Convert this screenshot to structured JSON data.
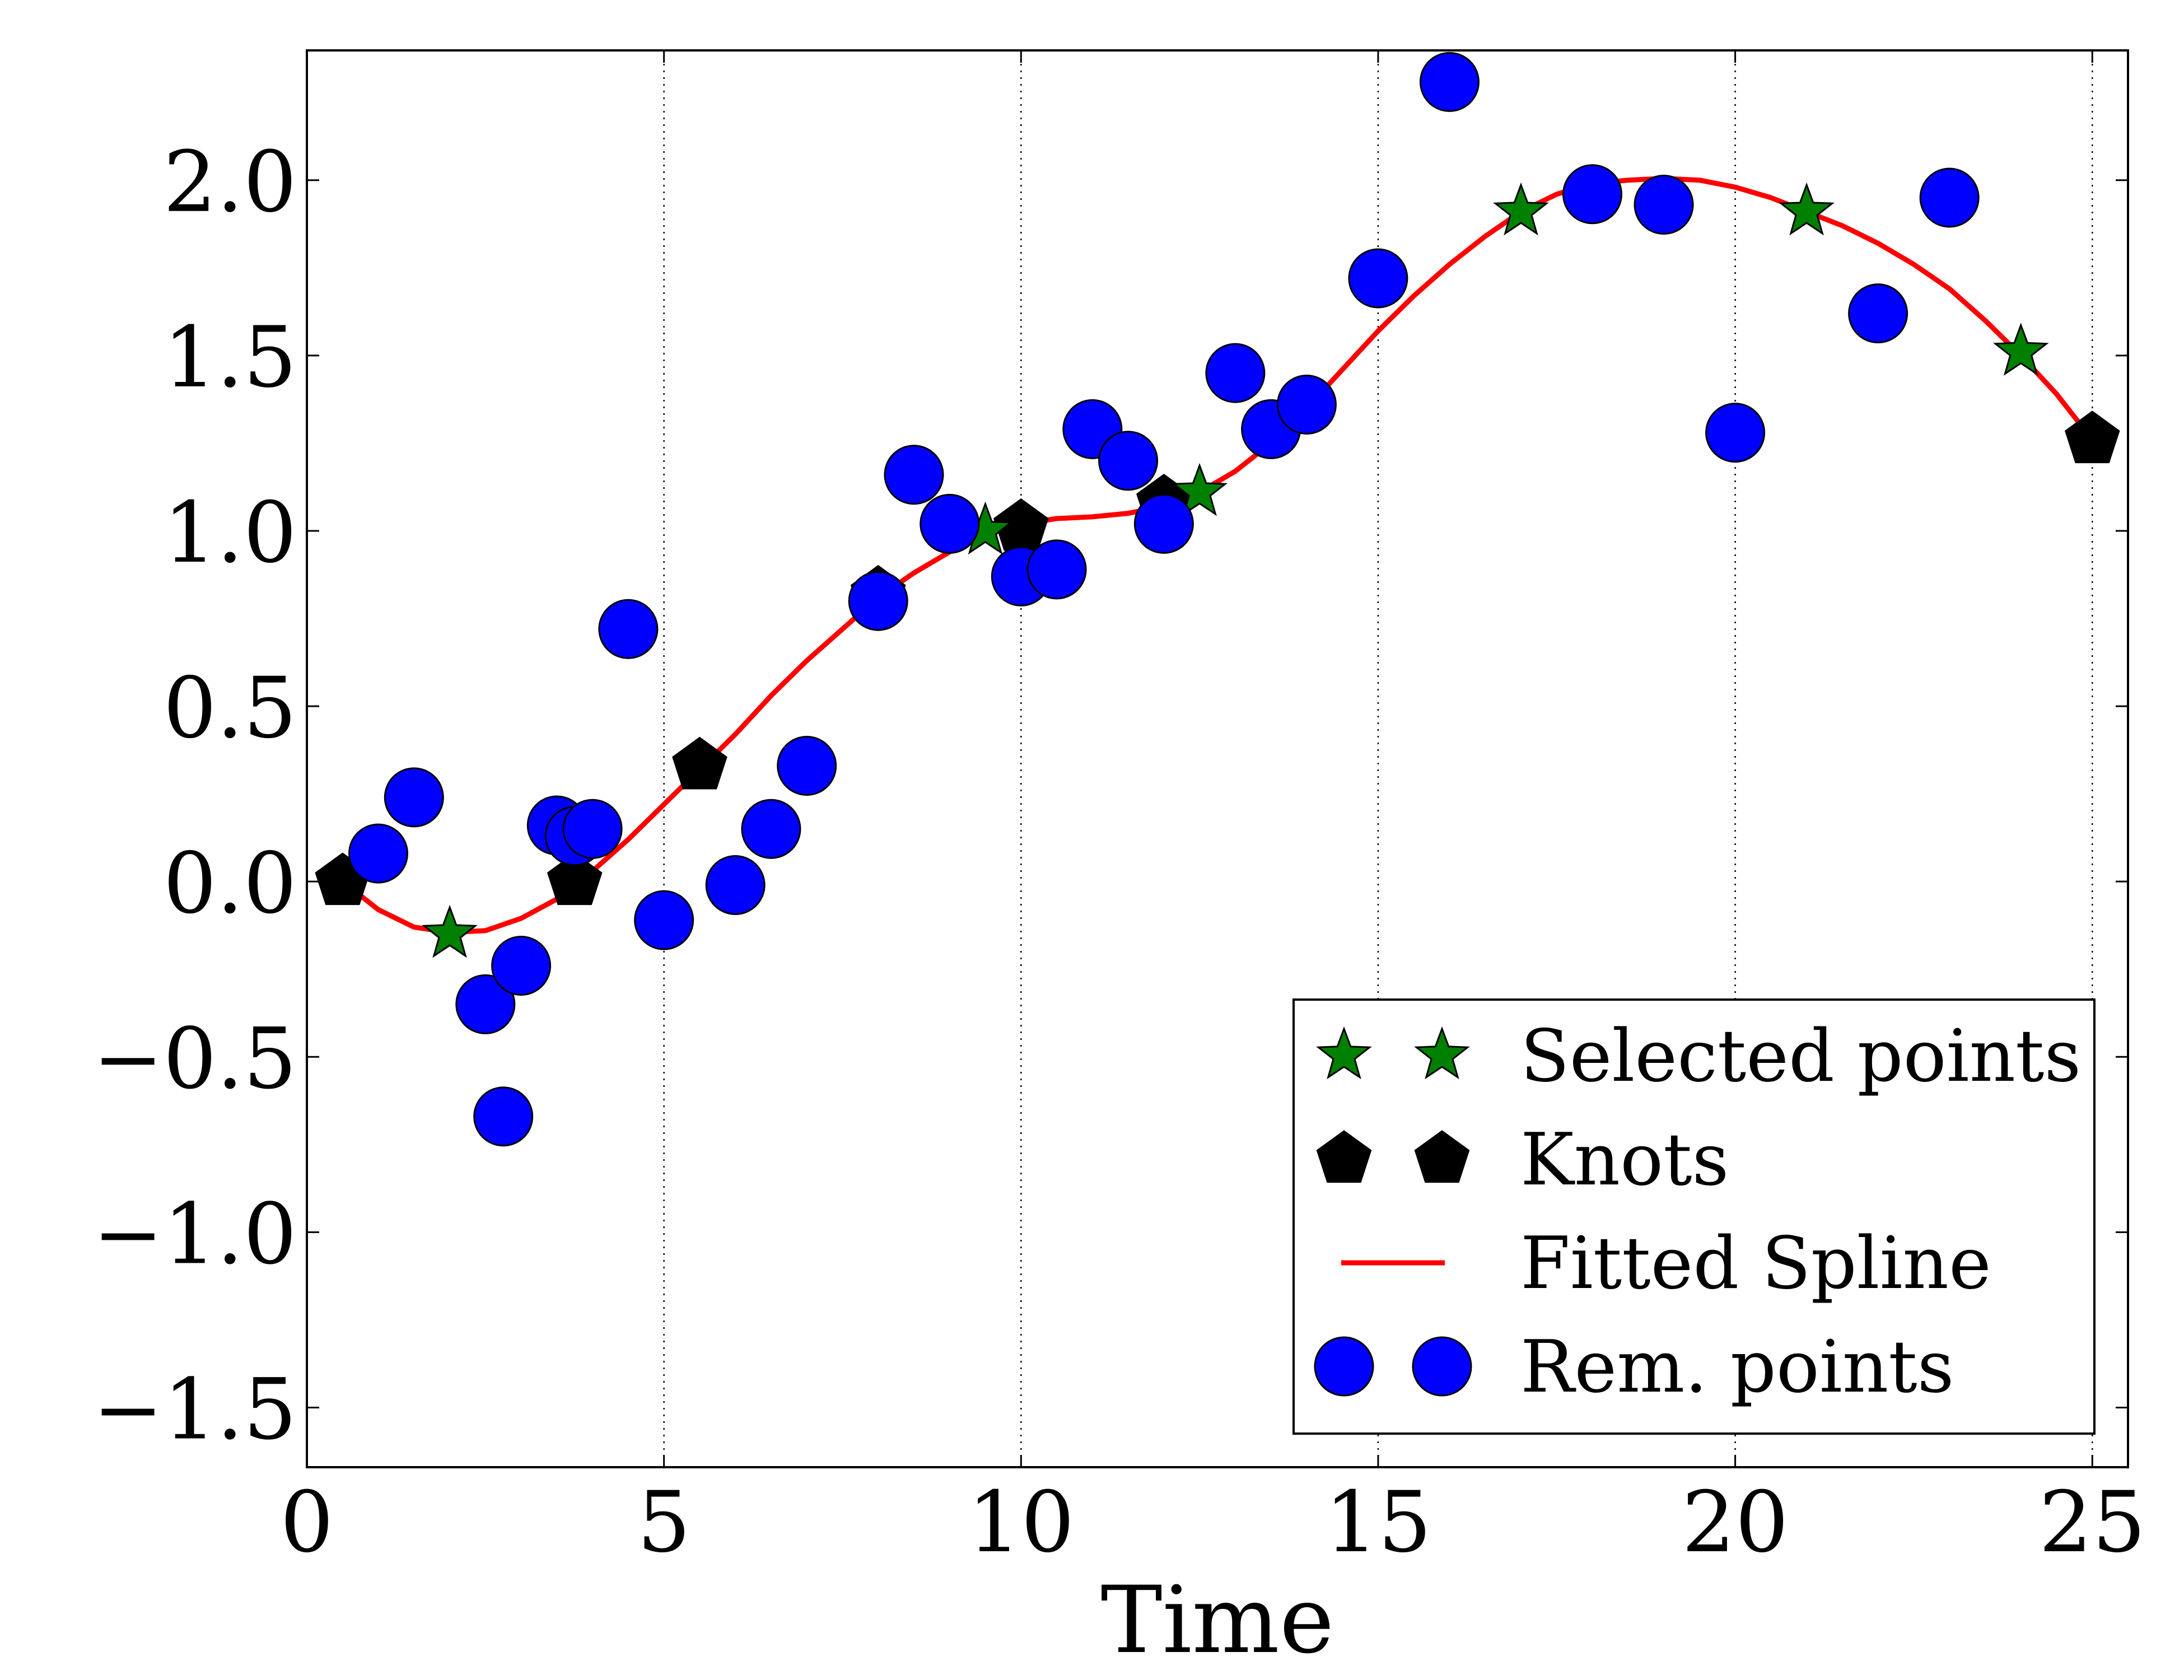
{
  "chart_data": {
    "type": "scatter",
    "title": "",
    "xlabel": "Time",
    "ylabel": "",
    "xlim": [
      0,
      25.5
    ],
    "ylim": [
      -1.67,
      2.37
    ],
    "x_ticks": [
      0,
      5,
      10,
      15,
      20,
      25
    ],
    "y_ticks": [
      -1.5,
      -1.0,
      -0.5,
      0.0,
      0.5,
      1.0,
      1.5,
      2.0
    ],
    "x_tick_labels": [
      "0",
      "5",
      "10",
      "15",
      "20",
      "25"
    ],
    "y_tick_labels": [
      "−1.5",
      "−1.0",
      "−0.5",
      "0.0",
      "0.5",
      "1.0",
      "1.5",
      "2.0"
    ],
    "grid": {
      "x": true,
      "y": false,
      "style": "dotted"
    },
    "legend": {
      "placement": "lower-right",
      "entries": [
        {
          "label": "Selected points",
          "marker": "star",
          "color": "#008000"
        },
        {
          "label": "Knots",
          "marker": "pentagon",
          "color": "#000000"
        },
        {
          "label": "Fitted Spline",
          "marker": "line",
          "color": "#ff0000"
        },
        {
          "label": "Rem. points",
          "marker": "circle",
          "color": "#0000ff"
        }
      ]
    },
    "series": [
      {
        "name": "Fitted Spline",
        "kind": "line",
        "color": "#ff0000",
        "points": [
          [
            0.5,
            0.0
          ],
          [
            1.0,
            -0.08
          ],
          [
            1.5,
            -0.13
          ],
          [
            2.0,
            -0.145
          ],
          [
            2.5,
            -0.14
          ],
          [
            3.0,
            -0.105
          ],
          [
            3.5,
            -0.05
          ],
          [
            4.0,
            0.03
          ],
          [
            4.5,
            0.12
          ],
          [
            5.0,
            0.22
          ],
          [
            5.5,
            0.32
          ],
          [
            6.0,
            0.42
          ],
          [
            6.5,
            0.53
          ],
          [
            7.0,
            0.63
          ],
          [
            7.5,
            0.72
          ],
          [
            8.0,
            0.81
          ],
          [
            8.5,
            0.88
          ],
          [
            9.0,
            0.94
          ],
          [
            9.5,
            0.99
          ],
          [
            10.0,
            1.02
          ],
          [
            10.5,
            1.035
          ],
          [
            11.0,
            1.04
          ],
          [
            11.5,
            1.05
          ],
          [
            12.0,
            1.07
          ],
          [
            12.5,
            1.11
          ],
          [
            13.0,
            1.17
          ],
          [
            13.5,
            1.25
          ],
          [
            14.0,
            1.35
          ],
          [
            14.5,
            1.46
          ],
          [
            15.0,
            1.57
          ],
          [
            15.5,
            1.67
          ],
          [
            16.0,
            1.76
          ],
          [
            16.5,
            1.84
          ],
          [
            17.0,
            1.91
          ],
          [
            17.5,
            1.96
          ],
          [
            18.0,
            1.99
          ],
          [
            18.5,
            2.0
          ],
          [
            19.0,
            2.005
          ],
          [
            19.5,
            2.0
          ],
          [
            20.0,
            1.98
          ],
          [
            20.5,
            1.95
          ],
          [
            21.0,
            1.91
          ],
          [
            21.5,
            1.87
          ],
          [
            22.0,
            1.82
          ],
          [
            22.5,
            1.76
          ],
          [
            23.0,
            1.69
          ],
          [
            23.5,
            1.6
          ],
          [
            24.0,
            1.5
          ],
          [
            24.5,
            1.39
          ],
          [
            25.0,
            1.26
          ]
        ]
      },
      {
        "name": "Knots",
        "kind": "scatter",
        "marker": "pentagon",
        "color": "#000000",
        "points": [
          [
            0.5,
            0.0
          ],
          [
            3.75,
            0.0
          ],
          [
            5.5,
            0.33
          ],
          [
            8.0,
            0.82
          ],
          [
            10.0,
            1.01
          ],
          [
            12.0,
            1.08
          ],
          [
            25.0,
            1.26
          ]
        ]
      },
      {
        "name": "Selected points",
        "kind": "scatter",
        "marker": "star",
        "color": "#008000",
        "points": [
          [
            2.0,
            -0.15
          ],
          [
            9.5,
            1.0
          ],
          [
            12.5,
            1.11
          ],
          [
            17.0,
            1.91
          ],
          [
            21.0,
            1.91
          ],
          [
            24.0,
            1.51
          ]
        ]
      },
      {
        "name": "Rem. points",
        "kind": "scatter",
        "marker": "circle",
        "color": "#0000ff",
        "points": [
          [
            1.0,
            0.08
          ],
          [
            1.5,
            0.24
          ],
          [
            2.5,
            -0.35
          ],
          [
            2.75,
            -0.67
          ],
          [
            3.0,
            -0.24
          ],
          [
            3.5,
            0.16
          ],
          [
            3.75,
            0.13
          ],
          [
            4.0,
            0.15
          ],
          [
            4.5,
            0.72
          ],
          [
            5.0,
            -0.11
          ],
          [
            6.0,
            -0.01
          ],
          [
            6.5,
            0.15
          ],
          [
            7.0,
            0.33
          ],
          [
            8.0,
            0.8
          ],
          [
            8.5,
            1.16
          ],
          [
            9.0,
            1.02
          ],
          [
            10.0,
            0.87
          ],
          [
            10.5,
            0.89
          ],
          [
            11.0,
            1.29
          ],
          [
            11.5,
            1.2
          ],
          [
            12.0,
            1.02
          ],
          [
            13.0,
            1.45
          ],
          [
            13.5,
            1.29
          ],
          [
            14.0,
            1.36
          ],
          [
            15.0,
            1.72
          ],
          [
            16.0,
            2.28
          ],
          [
            18.0,
            1.96
          ],
          [
            19.0,
            1.93
          ],
          [
            20.0,
            1.28
          ],
          [
            22.0,
            1.62
          ],
          [
            23.0,
            1.95
          ]
        ]
      }
    ]
  }
}
